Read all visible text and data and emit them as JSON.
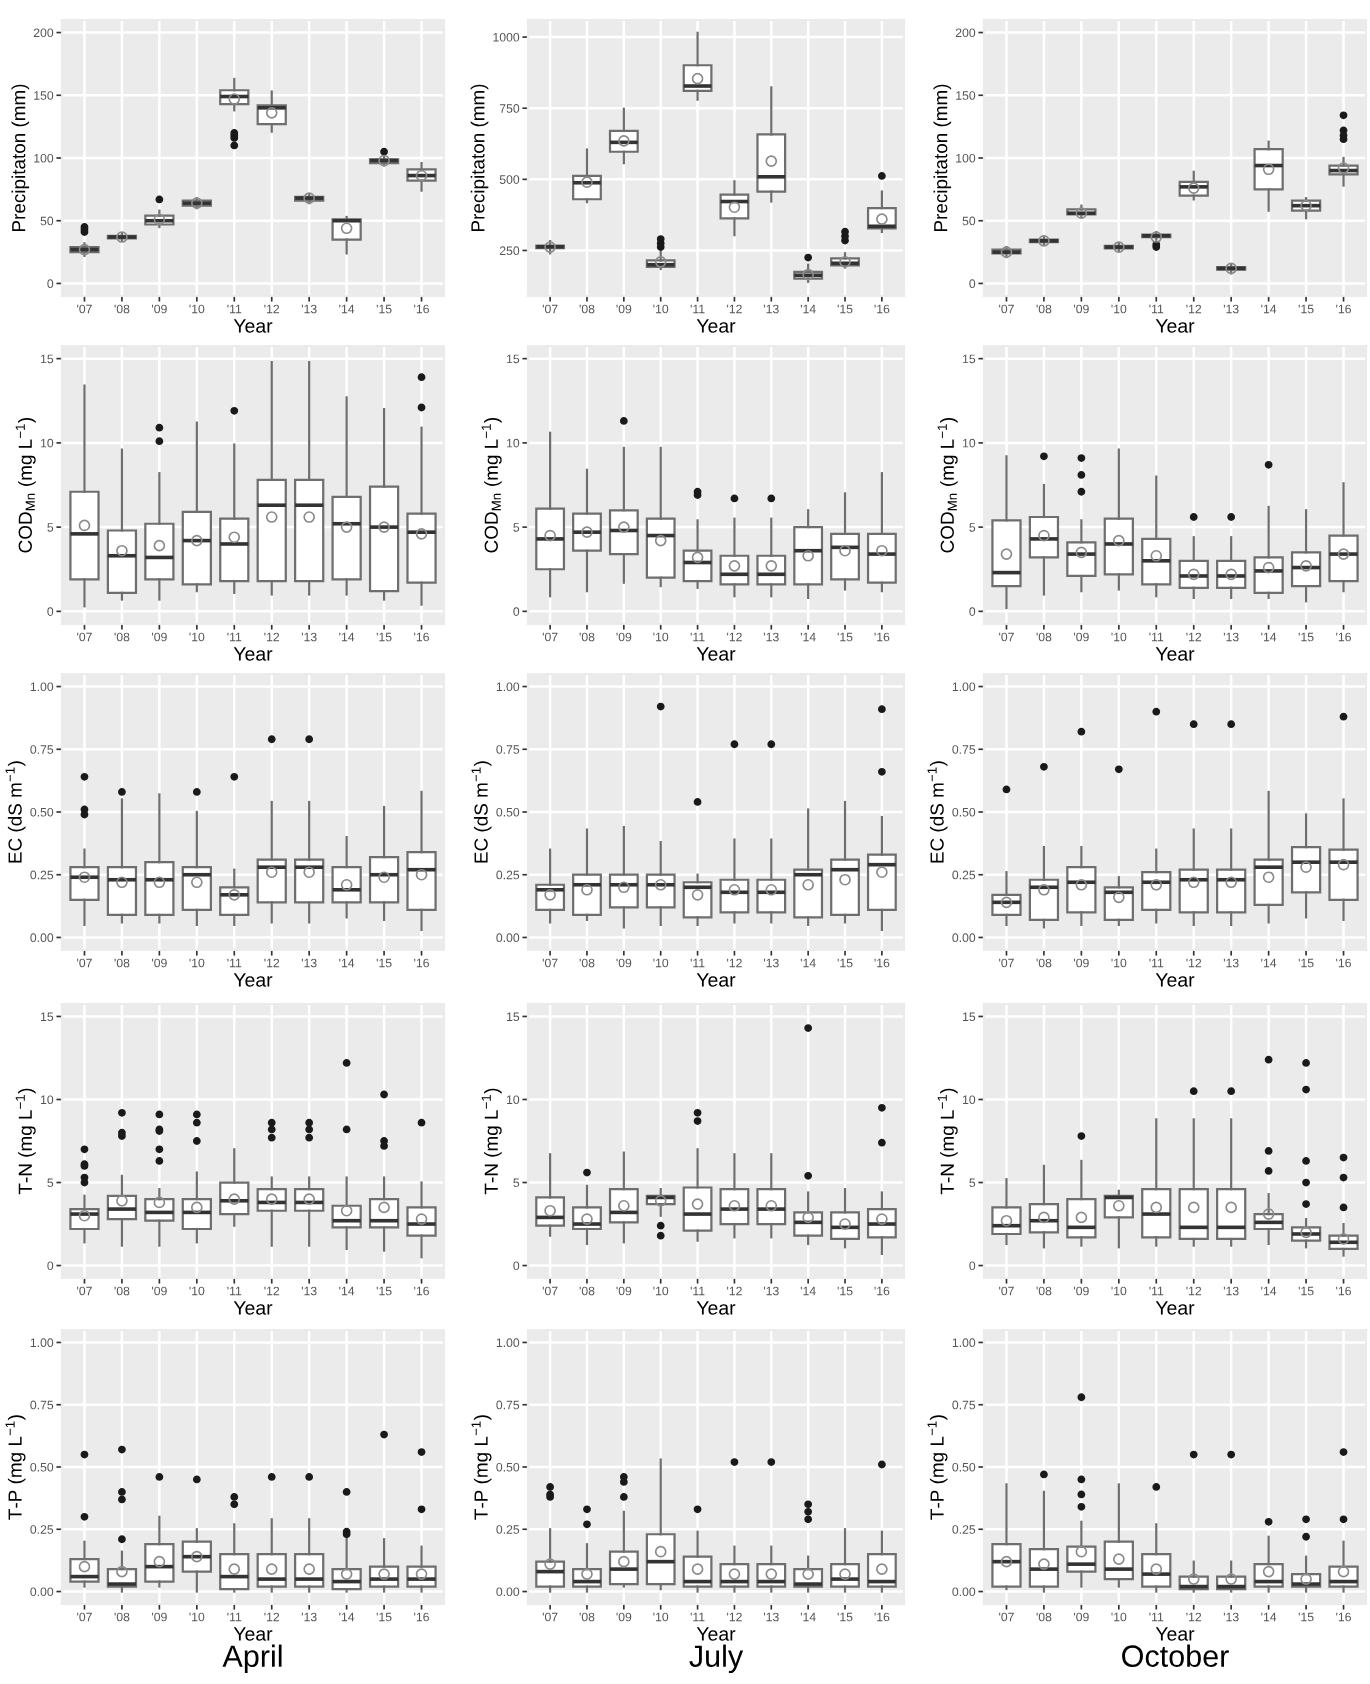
{
  "chart_data": [
    {
      "type": "box",
      "xlabel": "Year",
      "ylabel": "Precipitaton (mm)",
      "categories": [
        "'07",
        "'08",
        "'09",
        "'10",
        "'11",
        "'12",
        "'13",
        "'14",
        "'15",
        "'16"
      ],
      "ylim": [
        -10,
        210
      ],
      "yticks": [
        0,
        50,
        100,
        150,
        200
      ],
      "grid": true,
      "boxes": [
        {
          "low": 22,
          "q1": 25,
          "median": 27,
          "q3": 29,
          "high": 32,
          "mean": 27,
          "outliers": [
            41,
            43,
            45
          ]
        },
        {
          "low": 34,
          "q1": 36,
          "median": 37,
          "q3": 38,
          "high": 40,
          "mean": 37
        },
        {
          "low": 45,
          "q1": 47,
          "median": 50,
          "q3": 54,
          "high": 58,
          "mean": 51,
          "outliers": [
            67
          ]
        },
        {
          "low": 60,
          "q1": 62,
          "median": 64,
          "q3": 66,
          "high": 68,
          "mean": 64
        },
        {
          "low": 138,
          "q1": 143,
          "median": 149,
          "q3": 154,
          "high": 163,
          "mean": 147,
          "outliers": [
            110,
            116,
            118,
            120
          ]
        },
        {
          "low": 121,
          "q1": 127,
          "median": 140,
          "q3": 142,
          "high": 153,
          "mean": 136
        },
        {
          "low": 64,
          "q1": 66,
          "median": 68,
          "q3": 69,
          "high": 71,
          "mean": 68
        },
        {
          "low": 24,
          "q1": 35,
          "median": 50,
          "q3": 51,
          "high": 53,
          "mean": 44
        },
        {
          "low": 94,
          "q1": 96,
          "median": 98,
          "q3": 99,
          "high": 101,
          "mean": 98,
          "outliers": [
            105
          ]
        },
        {
          "low": 74,
          "q1": 82,
          "median": 86,
          "q3": 91,
          "high": 96,
          "mean": 86
        }
      ]
    },
    {
      "type": "box",
      "xlabel": "Year",
      "ylabel": "Precipitaton (mm)",
      "categories": [
        "'07",
        "'08",
        "'09",
        "'10",
        "'11",
        "'12",
        "'13",
        "'14",
        "'15",
        "'16"
      ],
      "ylim": [
        90,
        1060
      ],
      "yticks": [
        250,
        500,
        750,
        1000
      ],
      "grid": true,
      "boxes": [
        {
          "low": 240,
          "q1": 258,
          "median": 263,
          "q3": 267,
          "high": 283,
          "mean": 262
        },
        {
          "low": 420,
          "q1": 430,
          "median": 488,
          "q3": 512,
          "high": 605,
          "mean": 490
        },
        {
          "low": 557,
          "q1": 597,
          "median": 630,
          "q3": 670,
          "high": 748,
          "mean": 635
        },
        {
          "low": 185,
          "q1": 192,
          "median": 200,
          "q3": 215,
          "high": 245,
          "mean": 210,
          "outliers": [
            262,
            275,
            290
          ]
        },
        {
          "low": 780,
          "q1": 811,
          "median": 828,
          "q3": 901,
          "high": 1015,
          "mean": 854
        },
        {
          "low": 304,
          "q1": 363,
          "median": 422,
          "q3": 446,
          "high": 493,
          "mean": 402
        },
        {
          "low": 422,
          "q1": 457,
          "median": 509,
          "q3": 658,
          "high": 823,
          "mean": 564
        },
        {
          "low": 140,
          "q1": 151,
          "median": 163,
          "q3": 175,
          "high": 200,
          "mean": 165,
          "outliers": [
            225
          ]
        },
        {
          "low": 190,
          "q1": 198,
          "median": 205,
          "q3": 222,
          "high": 240,
          "mean": 210,
          "outliers": [
            285,
            300,
            316
          ]
        },
        {
          "low": 315,
          "q1": 328,
          "median": 335,
          "q3": 399,
          "high": 457,
          "mean": 360,
          "outliers": [
            512
          ]
        }
      ]
    },
    {
      "type": "box",
      "xlabel": "Year",
      "ylabel": "Precipitaton (mm)",
      "categories": [
        "'07",
        "'08",
        "'09",
        "'10",
        "'11",
        "'12",
        "'13",
        "'14",
        "'15",
        "'16"
      ],
      "ylim": [
        -10,
        210
      ],
      "yticks": [
        0,
        50,
        100,
        150,
        200
      ],
      "grid": true,
      "boxes": [
        {
          "low": 21,
          "q1": 24,
          "median": 25,
          "q3": 27,
          "high": 29,
          "mean": 25
        },
        {
          "low": 31,
          "q1": 33,
          "median": 34,
          "q3": 35,
          "high": 37,
          "mean": 34
        },
        {
          "low": 53,
          "q1": 55,
          "median": 56,
          "q3": 59,
          "high": 62,
          "mean": 56
        },
        {
          "low": 26,
          "q1": 28,
          "median": 29,
          "q3": 30,
          "high": 32,
          "mean": 29
        },
        {
          "low": 35,
          "q1": 37,
          "median": 38,
          "q3": 39,
          "high": 41,
          "mean": 37,
          "outliers": [
            29,
            31
          ]
        },
        {
          "low": 67,
          "q1": 70,
          "median": 77,
          "q3": 81,
          "high": 89,
          "mean": 76
        },
        {
          "low": 8,
          "q1": 11,
          "median": 12,
          "q3": 13,
          "high": 15,
          "mean": 12
        },
        {
          "low": 58,
          "q1": 75,
          "median": 94,
          "q3": 107,
          "high": 113,
          "mean": 91
        },
        {
          "low": 52,
          "q1": 58,
          "median": 62,
          "q3": 66,
          "high": 68,
          "mean": 62
        },
        {
          "low": 78,
          "q1": 87,
          "median": 90,
          "q3": 94,
          "high": 100,
          "mean": 92,
          "outliers": [
            115,
            118,
            122,
            134
          ]
        }
      ]
    },
    {
      "type": "box",
      "xlabel": "Year",
      "ylabel": "COD$_{Mn}$ (mg L$^{−1}$)",
      "categories": [
        "'07",
        "'08",
        "'09",
        "'10",
        "'11",
        "'12",
        "'13",
        "'14",
        "'15",
        "'16"
      ],
      "ylim": [
        -0.75,
        15.75
      ],
      "yticks": [
        0,
        5,
        10,
        15
      ],
      "grid": true,
      "boxes": [
        {
          "low": 0.3,
          "q1": 1.9,
          "median": 4.6,
          "q3": 7.1,
          "high": 13.4,
          "mean": 5.1
        },
        {
          "low": 0.7,
          "q1": 1.1,
          "median": 3.3,
          "q3": 4.8,
          "high": 9.6,
          "mean": 3.6
        },
        {
          "low": 0.7,
          "q1": 1.9,
          "median": 3.2,
          "q3": 5.2,
          "high": 8.2,
          "mean": 3.9,
          "outliers": [
            10.1,
            10.9
          ]
        },
        {
          "low": 1.2,
          "q1": 1.6,
          "median": 4.2,
          "q3": 5.9,
          "high": 11.2,
          "mean": 4.2
        },
        {
          "low": 1.1,
          "q1": 1.8,
          "median": 4.0,
          "q3": 5.5,
          "high": 9.9,
          "mean": 4.4,
          "outliers": [
            11.9
          ]
        },
        {
          "low": 1.0,
          "q1": 1.8,
          "median": 6.3,
          "q3": 7.8,
          "high": 14.8,
          "mean": 5.6
        },
        {
          "low": 1.0,
          "q1": 1.8,
          "median": 6.3,
          "q3": 7.8,
          "high": 14.8,
          "mean": 5.6
        },
        {
          "low": 1.0,
          "q1": 1.9,
          "median": 5.2,
          "q3": 6.8,
          "high": 12.7,
          "mean": 5.0
        },
        {
          "low": 0.7,
          "q1": 1.2,
          "median": 5.0,
          "q3": 7.4,
          "high": 12.0,
          "mean": 5.0
        },
        {
          "low": 0.4,
          "q1": 1.7,
          "median": 4.7,
          "q3": 5.8,
          "high": 10.9,
          "mean": 4.6,
          "outliers": [
            12.1,
            13.9
          ]
        }
      ]
    },
    {
      "type": "box",
      "xlabel": "Year",
      "ylabel": "COD$_{Mn}$ (mg L$^{−1}$)",
      "categories": [
        "'07",
        "'08",
        "'09",
        "'10",
        "'11",
        "'12",
        "'13",
        "'14",
        "'15",
        "'16"
      ],
      "ylim": [
        -0.75,
        15.75
      ],
      "yticks": [
        0,
        5,
        10,
        15
      ],
      "grid": true,
      "boxes": [
        {
          "low": 0.9,
          "q1": 2.5,
          "median": 4.3,
          "q3": 6.1,
          "high": 10.6,
          "mean": 4.5
        },
        {
          "low": 1.2,
          "q1": 3.6,
          "median": 4.7,
          "q3": 5.8,
          "high": 8.4,
          "mean": 4.7
        },
        {
          "low": 1.7,
          "q1": 3.4,
          "median": 4.8,
          "q3": 6.0,
          "high": 9.7,
          "mean": 5.0,
          "outliers": [
            11.3
          ]
        },
        {
          "low": 1.5,
          "q1": 2.0,
          "median": 4.5,
          "q3": 5.5,
          "high": 9.7,
          "mean": 4.2
        },
        {
          "low": 1.4,
          "q1": 1.8,
          "median": 2.9,
          "q3": 3.6,
          "high": 5.4,
          "mean": 3.2,
          "outliers": [
            6.9,
            7.1
          ]
        },
        {
          "low": 0.9,
          "q1": 1.6,
          "median": 2.2,
          "q3": 3.3,
          "high": 5.5,
          "mean": 2.7,
          "outliers": [
            6.7
          ]
        },
        {
          "low": 0.9,
          "q1": 1.6,
          "median": 2.2,
          "q3": 3.3,
          "high": 5.5,
          "mean": 2.7,
          "outliers": [
            6.7
          ]
        },
        {
          "low": 0.8,
          "q1": 1.6,
          "median": 3.6,
          "q3": 5.0,
          "high": 6.0,
          "mean": 3.3
        },
        {
          "low": 1.3,
          "q1": 1.9,
          "median": 3.8,
          "q3": 4.6,
          "high": 7.0,
          "mean": 3.6
        },
        {
          "low": 1.2,
          "q1": 1.7,
          "median": 3.4,
          "q3": 4.6,
          "high": 8.2,
          "mean": 3.6
        }
      ]
    },
    {
      "type": "box",
      "xlabel": "Year",
      "ylabel": "COD$_{Mn}$ (mg L$^{−1}$)",
      "categories": [
        "'07",
        "'08",
        "'09",
        "'10",
        "'11",
        "'12",
        "'13",
        "'14",
        "'15",
        "'16"
      ],
      "ylim": [
        -0.75,
        15.75
      ],
      "yticks": [
        0,
        5,
        10,
        15
      ],
      "grid": true,
      "boxes": [
        {
          "low": 0.2,
          "q1": 1.5,
          "median": 2.3,
          "q3": 5.4,
          "high": 9.2,
          "mean": 3.4
        },
        {
          "low": 1.0,
          "q1": 3.2,
          "median": 4.3,
          "q3": 5.6,
          "high": 7.5,
          "mean": 4.5,
          "outliers": [
            9.2
          ]
        },
        {
          "low": 1.2,
          "q1": 2.1,
          "median": 3.4,
          "q3": 4.1,
          "high": 5.4,
          "mean": 3.5,
          "outliers": [
            7.1,
            8.1,
            9.1
          ]
        },
        {
          "low": 1.3,
          "q1": 2.2,
          "median": 4.0,
          "q3": 5.5,
          "high": 9.6,
          "mean": 4.2
        },
        {
          "low": 0.9,
          "q1": 1.6,
          "median": 3.0,
          "q3": 4.3,
          "high": 8.0,
          "mean": 3.3
        },
        {
          "low": 0.8,
          "q1": 1.4,
          "median": 2.1,
          "q3": 3.0,
          "high": 4.4,
          "mean": 2.2,
          "outliers": [
            5.6
          ]
        },
        {
          "low": 0.8,
          "q1": 1.4,
          "median": 2.1,
          "q3": 3.0,
          "high": 4.4,
          "mean": 2.2,
          "outliers": [
            5.6
          ]
        },
        {
          "low": 0.8,
          "q1": 1.1,
          "median": 2.4,
          "q3": 3.2,
          "high": 6.2,
          "mean": 2.6,
          "outliers": [
            8.7
          ]
        },
        {
          "low": 0.6,
          "q1": 1.5,
          "median": 2.6,
          "q3": 3.5,
          "high": 6.0,
          "mean": 2.7
        },
        {
          "low": 1.2,
          "q1": 1.8,
          "median": 3.4,
          "q3": 4.5,
          "high": 7.6,
          "mean": 3.4
        }
      ]
    },
    {
      "type": "box",
      "xlabel": "Year",
      "ylabel": "EC (dS m$^{−1}$)",
      "categories": [
        "'07",
        "'08",
        "'09",
        "'10",
        "'11",
        "'12",
        "'13",
        "'14",
        "'15",
        "'16"
      ],
      "ylim": [
        -0.05,
        1.05
      ],
      "yticks": [
        {
          "value": 0,
          "label": "0.00"
        },
        {
          "value": 0.25,
          "label": "0.25"
        },
        {
          "value": 0.5,
          "label": "0.50"
        },
        {
          "value": 0.75,
          "label": "0.75"
        },
        {
          "value": 1,
          "label": "1.00"
        }
      ],
      "grid": true,
      "boxes": [
        {
          "low": 0.05,
          "q1": 0.15,
          "median": 0.24,
          "q3": 0.28,
          "high": 0.35,
          "mean": 0.24,
          "outliers": [
            0.49,
            0.51,
            0.64
          ]
        },
        {
          "low": 0.06,
          "q1": 0.09,
          "median": 0.23,
          "q3": 0.28,
          "high": 0.55,
          "mean": 0.22,
          "outliers": [
            0.58
          ]
        },
        {
          "low": 0.06,
          "q1": 0.09,
          "median": 0.23,
          "q3": 0.3,
          "high": 0.57,
          "mean": 0.22
        },
        {
          "low": 0.05,
          "q1": 0.11,
          "median": 0.25,
          "q3": 0.28,
          "high": 0.5,
          "mean": 0.22,
          "outliers": [
            0.58
          ]
        },
        {
          "low": 0.05,
          "q1": 0.09,
          "median": 0.17,
          "q3": 0.2,
          "high": 0.27,
          "mean": 0.17,
          "outliers": [
            0.64
          ]
        },
        {
          "low": 0.06,
          "q1": 0.14,
          "median": 0.28,
          "q3": 0.31,
          "high": 0.54,
          "mean": 0.26,
          "outliers": [
            0.79
          ]
        },
        {
          "low": 0.06,
          "q1": 0.14,
          "median": 0.28,
          "q3": 0.31,
          "high": 0.54,
          "mean": 0.26,
          "outliers": [
            0.79
          ]
        },
        {
          "low": 0.08,
          "q1": 0.14,
          "median": 0.19,
          "q3": 0.28,
          "high": 0.4,
          "mean": 0.21
        },
        {
          "low": 0.07,
          "q1": 0.14,
          "median": 0.25,
          "q3": 0.32,
          "high": 0.52,
          "mean": 0.24
        },
        {
          "low": 0.03,
          "q1": 0.11,
          "median": 0.27,
          "q3": 0.34,
          "high": 0.58,
          "mean": 0.25
        }
      ]
    },
    {
      "type": "box",
      "xlabel": "Year",
      "ylabel": "EC (dS m$^{−1}$)",
      "categories": [
        "'07",
        "'08",
        "'09",
        "'10",
        "'11",
        "'12",
        "'13",
        "'14",
        "'15",
        "'16"
      ],
      "ylim": [
        -0.05,
        1.05
      ],
      "yticks": [
        {
          "value": 0,
          "label": "0.00"
        },
        {
          "value": 0.25,
          "label": "0.25"
        },
        {
          "value": 0.5,
          "label": "0.50"
        },
        {
          "value": 0.75,
          "label": "0.75"
        },
        {
          "value": 1,
          "label": "1.00"
        }
      ],
      "grid": true,
      "boxes": [
        {
          "low": 0.06,
          "q1": 0.11,
          "median": 0.19,
          "q3": 0.21,
          "high": 0.35,
          "mean": 0.17
        },
        {
          "low": 0.07,
          "q1": 0.09,
          "median": 0.21,
          "q3": 0.25,
          "high": 0.43,
          "mean": 0.19
        },
        {
          "low": 0.04,
          "q1": 0.12,
          "median": 0.21,
          "q3": 0.25,
          "high": 0.44,
          "mean": 0.2
        },
        {
          "low": 0.05,
          "q1": 0.12,
          "median": 0.21,
          "q3": 0.25,
          "high": 0.38,
          "mean": 0.21,
          "outliers": [
            0.92
          ]
        },
        {
          "low": 0.05,
          "q1": 0.08,
          "median": 0.2,
          "q3": 0.22,
          "high": 0.25,
          "mean": 0.17,
          "outliers": [
            0.54
          ]
        },
        {
          "low": 0.06,
          "q1": 0.1,
          "median": 0.18,
          "q3": 0.23,
          "high": 0.39,
          "mean": 0.19,
          "outliers": [
            0.77
          ]
        },
        {
          "low": 0.06,
          "q1": 0.1,
          "median": 0.18,
          "q3": 0.23,
          "high": 0.39,
          "mean": 0.19,
          "outliers": [
            0.77
          ]
        },
        {
          "low": 0.05,
          "q1": 0.08,
          "median": 0.25,
          "q3": 0.27,
          "high": 0.51,
          "mean": 0.21
        },
        {
          "low": 0.06,
          "q1": 0.09,
          "median": 0.27,
          "q3": 0.31,
          "high": 0.54,
          "mean": 0.23
        },
        {
          "low": 0.03,
          "q1": 0.11,
          "median": 0.29,
          "q3": 0.33,
          "high": 0.48,
          "mean": 0.26,
          "outliers": [
            0.66,
            0.91
          ]
        }
      ]
    },
    {
      "type": "box",
      "xlabel": "Year",
      "ylabel": "EC (dS m$^{−1}$)",
      "categories": [
        "'07",
        "'08",
        "'09",
        "'10",
        "'11",
        "'12",
        "'13",
        "'14",
        "'15",
        "'16"
      ],
      "ylim": [
        -0.05,
        1.05
      ],
      "yticks": [
        {
          "value": 0,
          "label": "0.00"
        },
        {
          "value": 0.25,
          "label": "0.25"
        },
        {
          "value": 0.5,
          "label": "0.50"
        },
        {
          "value": 0.75,
          "label": "0.75"
        },
        {
          "value": 1,
          "label": "1.00"
        }
      ],
      "grid": true,
      "boxes": [
        {
          "low": 0.05,
          "q1": 0.09,
          "median": 0.14,
          "q3": 0.17,
          "high": 0.26,
          "mean": 0.14,
          "outliers": [
            0.59
          ]
        },
        {
          "low": 0.04,
          "q1": 0.07,
          "median": 0.2,
          "q3": 0.23,
          "high": 0.36,
          "mean": 0.19,
          "outliers": [
            0.68
          ]
        },
        {
          "low": 0.05,
          "q1": 0.1,
          "median": 0.22,
          "q3": 0.28,
          "high": 0.36,
          "mean": 0.21,
          "outliers": [
            0.82
          ]
        },
        {
          "low": 0.05,
          "q1": 0.07,
          "median": 0.18,
          "q3": 0.2,
          "high": 0.24,
          "mean": 0.16,
          "outliers": [
            0.67
          ]
        },
        {
          "low": 0.06,
          "q1": 0.11,
          "median": 0.22,
          "q3": 0.26,
          "high": 0.35,
          "mean": 0.21,
          "outliers": [
            0.9
          ]
        },
        {
          "low": 0.05,
          "q1": 0.1,
          "median": 0.23,
          "q3": 0.27,
          "high": 0.43,
          "mean": 0.22,
          "outliers": [
            0.85
          ]
        },
        {
          "low": 0.05,
          "q1": 0.1,
          "median": 0.23,
          "q3": 0.27,
          "high": 0.43,
          "mean": 0.22,
          "outliers": [
            0.85
          ]
        },
        {
          "low": 0.06,
          "q1": 0.13,
          "median": 0.28,
          "q3": 0.31,
          "high": 0.58,
          "mean": 0.24
        },
        {
          "low": 0.08,
          "q1": 0.18,
          "median": 0.3,
          "q3": 0.36,
          "high": 0.49,
          "mean": 0.28
        },
        {
          "low": 0.07,
          "q1": 0.15,
          "median": 0.3,
          "q3": 0.35,
          "high": 0.55,
          "mean": 0.29,
          "outliers": [
            0.88
          ]
        }
      ]
    },
    {
      "type": "box",
      "xlabel": "Year",
      "ylabel": "T-N (mg L$^{−1}$)",
      "categories": [
        "'07",
        "'08",
        "'09",
        "'10",
        "'11",
        "'12",
        "'13",
        "'14",
        "'15",
        "'16"
      ],
      "ylim": [
        -0.75,
        15.75
      ],
      "yticks": [
        0,
        5,
        10,
        15
      ],
      "grid": true,
      "boxes": [
        {
          "low": 1.4,
          "q1": 2.2,
          "median": 3.1,
          "q3": 3.4,
          "high": 4.2,
          "mean": 3.0,
          "outliers": [
            5.0,
            5.3,
            6.0,
            6.1,
            7.0
          ]
        },
        {
          "low": 1.2,
          "q1": 2.8,
          "median": 3.4,
          "q3": 4.2,
          "high": 5.4,
          "mean": 3.9,
          "outliers": [
            7.8,
            8.0,
            9.2
          ]
        },
        {
          "low": 1.2,
          "q1": 2.7,
          "median": 3.2,
          "q3": 4.0,
          "high": 4.6,
          "mean": 3.8,
          "outliers": [
            6.3,
            7.0,
            8.1,
            8.2,
            9.1
          ]
        },
        {
          "low": 1.4,
          "q1": 2.2,
          "median": 3.2,
          "q3": 4.0,
          "high": 5.6,
          "mean": 3.5,
          "outliers": [
            7.5,
            8.6,
            9.1
          ]
        },
        {
          "low": 2.4,
          "q1": 3.1,
          "median": 3.9,
          "q3": 5.0,
          "high": 7.0,
          "mean": 4.0
        },
        {
          "low": 1.2,
          "q1": 3.3,
          "median": 3.8,
          "q3": 4.6,
          "high": 5.3,
          "mean": 4.0,
          "outliers": [
            7.7,
            8.2,
            8.6
          ]
        },
        {
          "low": 1.2,
          "q1": 3.3,
          "median": 3.8,
          "q3": 4.6,
          "high": 5.3,
          "mean": 4.0,
          "outliers": [
            7.7,
            8.2,
            8.6
          ]
        },
        {
          "low": 1.0,
          "q1": 2.3,
          "median": 2.7,
          "q3": 3.6,
          "high": 5.3,
          "mean": 3.3,
          "outliers": [
            8.2,
            12.2
          ]
        },
        {
          "low": 0.9,
          "q1": 2.3,
          "median": 2.7,
          "q3": 4.0,
          "high": 5.3,
          "mean": 3.5,
          "outliers": [
            7.2,
            7.5,
            10.3
          ]
        },
        {
          "low": 0.5,
          "q1": 1.8,
          "median": 2.5,
          "q3": 3.5,
          "high": 5.0,
          "mean": 2.8,
          "outliers": [
            8.6
          ]
        }
      ]
    },
    {
      "type": "box",
      "xlabel": "Year",
      "ylabel": "T-N (mg L$^{−1}$)",
      "categories": [
        "'07",
        "'08",
        "'09",
        "'10",
        "'11",
        "'12",
        "'13",
        "'14",
        "'15",
        "'16"
      ],
      "ylim": [
        -0.75,
        15.75
      ],
      "yticks": [
        0,
        5,
        10,
        15
      ],
      "grid": true,
      "boxes": [
        {
          "low": 1.8,
          "q1": 2.4,
          "median": 2.9,
          "q3": 4.1,
          "high": 6.7,
          "mean": 3.3
        },
        {
          "low": 1.3,
          "q1": 2.2,
          "median": 2.5,
          "q3": 3.5,
          "high": 4.8,
          "mean": 2.8,
          "outliers": [
            5.6
          ]
        },
        {
          "low": 1.4,
          "q1": 2.6,
          "median": 3.2,
          "q3": 4.6,
          "high": 6.8,
          "mean": 3.6
        },
        {
          "low": 3.0,
          "q1": 3.7,
          "median": 4.1,
          "q3": 4.2,
          "high": 4.6,
          "mean": 3.9,
          "outliers": [
            1.8,
            2.4
          ]
        },
        {
          "low": 1.5,
          "q1": 2.1,
          "median": 3.1,
          "q3": 4.7,
          "high": 7.0,
          "mean": 3.7,
          "outliers": [
            8.7,
            9.2
          ]
        },
        {
          "low": 1.7,
          "q1": 2.5,
          "median": 3.4,
          "q3": 4.6,
          "high": 6.7,
          "mean": 3.6
        },
        {
          "low": 1.7,
          "q1": 2.5,
          "median": 3.4,
          "q3": 4.6,
          "high": 6.7,
          "mean": 3.6
        },
        {
          "low": 1.3,
          "q1": 1.8,
          "median": 2.6,
          "q3": 3.2,
          "high": 4.4,
          "mean": 2.9,
          "outliers": [
            5.4,
            14.3
          ]
        },
        {
          "low": 1.1,
          "q1": 1.6,
          "median": 2.3,
          "q3": 3.2,
          "high": 4.6,
          "mean": 2.5
        },
        {
          "low": 0.7,
          "q1": 1.7,
          "median": 2.5,
          "q3": 3.4,
          "high": 4.4,
          "mean": 2.8,
          "outliers": [
            7.4,
            9.5
          ]
        }
      ]
    },
    {
      "type": "box",
      "xlabel": "Year",
      "ylabel": "T-N (mg L$^{−1}$)",
      "categories": [
        "'07",
        "'08",
        "'09",
        "'10",
        "'11",
        "'12",
        "'13",
        "'14",
        "'15",
        "'16"
      ],
      "ylim": [
        -0.75,
        15.75
      ],
      "yticks": [
        0,
        5,
        10,
        15
      ],
      "grid": true,
      "boxes": [
        {
          "low": 1.3,
          "q1": 1.9,
          "median": 2.4,
          "q3": 3.5,
          "high": 5.2,
          "mean": 2.7
        },
        {
          "low": 1.1,
          "q1": 2.0,
          "median": 2.7,
          "q3": 3.7,
          "high": 6.0,
          "mean": 2.9
        },
        {
          "low": 1.2,
          "q1": 1.7,
          "median": 2.3,
          "q3": 4.0,
          "high": 6.3,
          "mean": 2.9,
          "outliers": [
            7.8
          ]
        },
        {
          "low": 1.1,
          "q1": 2.9,
          "median": 4.1,
          "q3": 4.2,
          "high": 4.5,
          "mean": 3.6
        },
        {
          "low": 1.2,
          "q1": 1.7,
          "median": 3.1,
          "q3": 4.6,
          "high": 8.8,
          "mean": 3.5
        },
        {
          "low": 1.2,
          "q1": 1.6,
          "median": 2.3,
          "q3": 4.6,
          "high": 8.8,
          "mean": 3.5,
          "outliers": [
            10.5
          ]
        },
        {
          "low": 1.2,
          "q1": 1.6,
          "median": 2.3,
          "q3": 4.6,
          "high": 8.8,
          "mean": 3.5,
          "outliers": [
            10.5
          ]
        },
        {
          "low": 1.3,
          "q1": 2.2,
          "median": 2.6,
          "q3": 3.1,
          "high": 4.3,
          "mean": 3.1,
          "outliers": [
            5.7,
            6.9,
            12.4
          ]
        },
        {
          "low": 1.1,
          "q1": 1.5,
          "median": 1.9,
          "q3": 2.3,
          "high": 2.8,
          "mean": 2.0,
          "outliers": [
            3.7,
            5.0,
            6.3,
            10.6,
            12.2
          ]
        },
        {
          "low": 0.6,
          "q1": 1.0,
          "median": 1.4,
          "q3": 1.8,
          "high": 2.5,
          "mean": 1.6,
          "outliers": [
            3.5,
            5.3,
            6.5
          ]
        }
      ]
    },
    {
      "type": "box",
      "xlabel": "Year",
      "ylabel": "T-P (mg L$^{−1}$)",
      "categories": [
        "'07",
        "'08",
        "'09",
        "'10",
        "'11",
        "'12",
        "'13",
        "'14",
        "'15",
        "'16"
      ],
      "ylim": [
        -0.05,
        1.05
      ],
      "yticks": [
        {
          "value": 0,
          "label": "0.00"
        },
        {
          "value": 0.25,
          "label": "0.25"
        },
        {
          "value": 0.5,
          "label": "0.50"
        },
        {
          "value": 0.75,
          "label": "0.75"
        },
        {
          "value": 1,
          "label": "1.00"
        }
      ],
      "grid": true,
      "annotations": [
        "April"
      ],
      "boxes": [
        {
          "low": 0.02,
          "q1": 0.04,
          "median": 0.06,
          "q3": 0.13,
          "high": 0.2,
          "mean": 0.1,
          "outliers": [
            0.3,
            0.55
          ]
        },
        {
          "low": 0.0,
          "q1": 0.02,
          "median": 0.03,
          "q3": 0.09,
          "high": 0.16,
          "mean": 0.08,
          "outliers": [
            0.21,
            0.37,
            0.4,
            0.57
          ]
        },
        {
          "low": 0.02,
          "q1": 0.04,
          "median": 0.1,
          "q3": 0.19,
          "high": 0.3,
          "mean": 0.12,
          "outliers": [
            0.46
          ]
        },
        {
          "low": 0.0,
          "q1": 0.08,
          "median": 0.14,
          "q3": 0.2,
          "high": 0.25,
          "mean": 0.14,
          "outliers": [
            0.45
          ]
        },
        {
          "low": 0.0,
          "q1": 0.01,
          "median": 0.06,
          "q3": 0.15,
          "high": 0.27,
          "mean": 0.09,
          "outliers": [
            0.35,
            0.38
          ]
        },
        {
          "low": 0.0,
          "q1": 0.02,
          "median": 0.05,
          "q3": 0.15,
          "high": 0.29,
          "mean": 0.09,
          "outliers": [
            0.46
          ]
        },
        {
          "low": 0.0,
          "q1": 0.02,
          "median": 0.05,
          "q3": 0.15,
          "high": 0.29,
          "mean": 0.09,
          "outliers": [
            0.46
          ]
        },
        {
          "low": 0.0,
          "q1": 0.01,
          "median": 0.04,
          "q3": 0.09,
          "high": 0.21,
          "mean": 0.07,
          "outliers": [
            0.23,
            0.24,
            0.4
          ]
        },
        {
          "low": 0.0,
          "q1": 0.02,
          "median": 0.05,
          "q3": 0.1,
          "high": 0.21,
          "mean": 0.07,
          "outliers": [
            0.63
          ]
        },
        {
          "low": 0.0,
          "q1": 0.02,
          "median": 0.05,
          "q3": 0.1,
          "high": 0.18,
          "mean": 0.07,
          "outliers": [
            0.33,
            0.56
          ]
        }
      ]
    },
    {
      "type": "box",
      "xlabel": "Year",
      "ylabel": "T-P (mg L$^{−1}$)",
      "categories": [
        "'07",
        "'08",
        "'09",
        "'10",
        "'11",
        "'12",
        "'13",
        "'14",
        "'15",
        "'16"
      ],
      "ylim": [
        -0.05,
        1.05
      ],
      "yticks": [
        {
          "value": 0,
          "label": "0.00"
        },
        {
          "value": 0.25,
          "label": "0.25"
        },
        {
          "value": 0.5,
          "label": "0.50"
        },
        {
          "value": 0.75,
          "label": "0.75"
        },
        {
          "value": 1,
          "label": "1.00"
        }
      ],
      "grid": true,
      "annotations": [
        "July"
      ],
      "boxes": [
        {
          "low": 0.0,
          "q1": 0.02,
          "median": 0.08,
          "q3": 0.12,
          "high": 0.25,
          "mean": 0.11,
          "outliers": [
            0.38,
            0.39,
            0.42
          ]
        },
        {
          "low": 0.0,
          "q1": 0.02,
          "median": 0.04,
          "q3": 0.09,
          "high": 0.19,
          "mean": 0.07,
          "outliers": [
            0.27,
            0.33
          ]
        },
        {
          "low": 0.02,
          "q1": 0.03,
          "median": 0.09,
          "q3": 0.16,
          "high": 0.32,
          "mean": 0.12,
          "outliers": [
            0.38,
            0.44,
            0.46
          ]
        },
        {
          "low": 0.01,
          "q1": 0.03,
          "median": 0.12,
          "q3": 0.23,
          "high": 0.53,
          "mean": 0.16
        },
        {
          "low": 0.0,
          "q1": 0.02,
          "median": 0.04,
          "q3": 0.14,
          "high": 0.24,
          "mean": 0.09,
          "outliers": [
            0.33
          ]
        },
        {
          "low": 0.0,
          "q1": 0.02,
          "median": 0.04,
          "q3": 0.11,
          "high": 0.18,
          "mean": 0.07,
          "outliers": [
            0.52
          ]
        },
        {
          "low": 0.0,
          "q1": 0.02,
          "median": 0.04,
          "q3": 0.11,
          "high": 0.18,
          "mean": 0.07,
          "outliers": [
            0.52
          ]
        },
        {
          "low": 0.0,
          "q1": 0.02,
          "median": 0.03,
          "q3": 0.09,
          "high": 0.14,
          "mean": 0.07,
          "outliers": [
            0.29,
            0.32,
            0.35
          ]
        },
        {
          "low": 0.0,
          "q1": 0.02,
          "median": 0.05,
          "q3": 0.11,
          "high": 0.25,
          "mean": 0.07
        },
        {
          "low": 0.0,
          "q1": 0.02,
          "median": 0.04,
          "q3": 0.15,
          "high": 0.24,
          "mean": 0.09,
          "outliers": [
            0.51
          ]
        }
      ]
    },
    {
      "type": "box",
      "xlabel": "Year",
      "ylabel": "T-P (mg L$^{−1}$)",
      "categories": [
        "'07",
        "'08",
        "'09",
        "'10",
        "'11",
        "'12",
        "'13",
        "'14",
        "'15",
        "'16"
      ],
      "ylim": [
        -0.05,
        1.05
      ],
      "yticks": [
        {
          "value": 0,
          "label": "0.00"
        },
        {
          "value": 0.25,
          "label": "0.25"
        },
        {
          "value": 0.5,
          "label": "0.50"
        },
        {
          "value": 0.75,
          "label": "0.75"
        },
        {
          "value": 1,
          "label": "1.00"
        }
      ],
      "grid": true,
      "annotations": [
        "October"
      ],
      "boxes": [
        {
          "low": 0.01,
          "q1": 0.02,
          "median": 0.12,
          "q3": 0.19,
          "high": 0.43,
          "mean": 0.12
        },
        {
          "low": 0.0,
          "q1": 0.02,
          "median": 0.09,
          "q3": 0.17,
          "high": 0.4,
          "mean": 0.11,
          "outliers": [
            0.47
          ]
        },
        {
          "low": 0.02,
          "q1": 0.08,
          "median": 0.11,
          "q3": 0.18,
          "high": 0.28,
          "mean": 0.16,
          "outliers": [
            0.34,
            0.39,
            0.45,
            0.78
          ]
        },
        {
          "low": 0.02,
          "q1": 0.05,
          "median": 0.09,
          "q3": 0.2,
          "high": 0.43,
          "mean": 0.13
        },
        {
          "low": 0.0,
          "q1": 0.02,
          "median": 0.07,
          "q3": 0.15,
          "high": 0.27,
          "mean": 0.09,
          "outliers": [
            0.42
          ]
        },
        {
          "low": 0.0,
          "q1": 0.01,
          "median": 0.02,
          "q3": 0.06,
          "high": 0.12,
          "mean": 0.05,
          "outliers": [
            0.55
          ]
        },
        {
          "low": 0.0,
          "q1": 0.01,
          "median": 0.02,
          "q3": 0.06,
          "high": 0.12,
          "mean": 0.05,
          "outliers": [
            0.55
          ]
        },
        {
          "low": 0.0,
          "q1": 0.02,
          "median": 0.04,
          "q3": 0.11,
          "high": 0.22,
          "mean": 0.08,
          "outliers": [
            0.28
          ]
        },
        {
          "low": 0.0,
          "q1": 0.02,
          "median": 0.03,
          "q3": 0.07,
          "high": 0.14,
          "mean": 0.05,
          "outliers": [
            0.22,
            0.29
          ]
        },
        {
          "low": 0.0,
          "q1": 0.02,
          "median": 0.04,
          "q3": 0.1,
          "high": 0.2,
          "mean": 0.08,
          "outliers": [
            0.29,
            0.56
          ]
        }
      ]
    }
  ]
}
